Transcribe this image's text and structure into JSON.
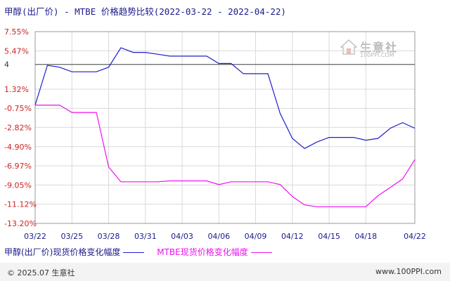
{
  "chart_data": {
    "type": "line",
    "title": "甲醇(出厂价) - MTBE 价格趋势比较(2022-03-22 - 2022-04-22)",
    "y_tick_labels": [
      "7.55%",
      "5.47%",
      "4",
      "1.32%",
      "-0.75%",
      "-2.82%",
      "-4.90%",
      "-6.97%",
      "-9.05%",
      "-11.12%",
      "-13.20%"
    ],
    "y_tick_values": [
      7.55,
      5.47,
      4.0,
      1.32,
      -0.75,
      -2.82,
      -4.9,
      -6.97,
      -9.05,
      -11.12,
      -13.2
    ],
    "ylim": [
      -13.2,
      7.55
    ],
    "x_tick_labels": [
      "03/22",
      "03/25",
      "03/28",
      "03/31",
      "04/03",
      "04/06",
      "04/09",
      "04/12",
      "04/15",
      "04/18",
      "04/22"
    ],
    "x_tick_days": [
      0,
      3,
      6,
      9,
      12,
      15,
      18,
      21,
      24,
      27,
      31
    ],
    "xlim": [
      0,
      31
    ],
    "grid": true,
    "series": [
      {
        "name": "甲醇(出厂价)现货价格变化幅度",
        "color": "#1f1fc8",
        "points": [
          [
            0,
            -0.4
          ],
          [
            1,
            3.9
          ],
          [
            2,
            3.7
          ],
          [
            3,
            3.2
          ],
          [
            4,
            3.2
          ],
          [
            5,
            3.2
          ],
          [
            6,
            3.7
          ],
          [
            7,
            5.8
          ],
          [
            8,
            5.3
          ],
          [
            9,
            5.3
          ],
          [
            10,
            5.1
          ],
          [
            11,
            4.9
          ],
          [
            12,
            4.9
          ],
          [
            13,
            4.9
          ],
          [
            14,
            4.9
          ],
          [
            15,
            4.1
          ],
          [
            16,
            4.1
          ],
          [
            17,
            3.0
          ],
          [
            18,
            3.0
          ],
          [
            19,
            3.0
          ],
          [
            20,
            -1.3
          ],
          [
            21,
            -4.0
          ],
          [
            22,
            -5.1
          ],
          [
            23,
            -4.4
          ],
          [
            24,
            -3.9
          ],
          [
            25,
            -3.9
          ],
          [
            26,
            -3.9
          ],
          [
            27,
            -4.2
          ],
          [
            28,
            -4.0
          ],
          [
            29,
            -2.9
          ],
          [
            30,
            -2.3
          ],
          [
            31,
            -2.9
          ]
        ]
      },
      {
        "name": "MTBE现货价格变化幅度",
        "color": "#ee11ee",
        "points": [
          [
            0,
            -0.4
          ],
          [
            1,
            -0.4
          ],
          [
            2,
            -0.4
          ],
          [
            3,
            -1.2
          ],
          [
            4,
            -1.2
          ],
          [
            5,
            -1.2
          ],
          [
            6,
            -7.1
          ],
          [
            7,
            -8.7
          ],
          [
            8,
            -8.7
          ],
          [
            9,
            -8.7
          ],
          [
            10,
            -8.7
          ],
          [
            11,
            -8.6
          ],
          [
            12,
            -8.6
          ],
          [
            13,
            -8.6
          ],
          [
            14,
            -8.6
          ],
          [
            15,
            -9.0
          ],
          [
            16,
            -8.7
          ],
          [
            17,
            -8.7
          ],
          [
            18,
            -8.7
          ],
          [
            19,
            -8.7
          ],
          [
            20,
            -9.0
          ],
          [
            21,
            -10.3
          ],
          [
            22,
            -11.2
          ],
          [
            23,
            -11.4
          ],
          [
            24,
            -11.4
          ],
          [
            25,
            -11.4
          ],
          [
            26,
            -11.4
          ],
          [
            27,
            -11.4
          ],
          [
            28,
            -10.2
          ],
          [
            29,
            -9.3
          ],
          [
            30,
            -8.4
          ],
          [
            31,
            -6.3
          ]
        ]
      }
    ],
    "legend_position": "bottom"
  },
  "footer": {
    "copyright": "© 2025.07 生意社",
    "url": "www.100PPI.com"
  },
  "watermark": {
    "text": "生意社",
    "url": "100PPI.COM"
  }
}
